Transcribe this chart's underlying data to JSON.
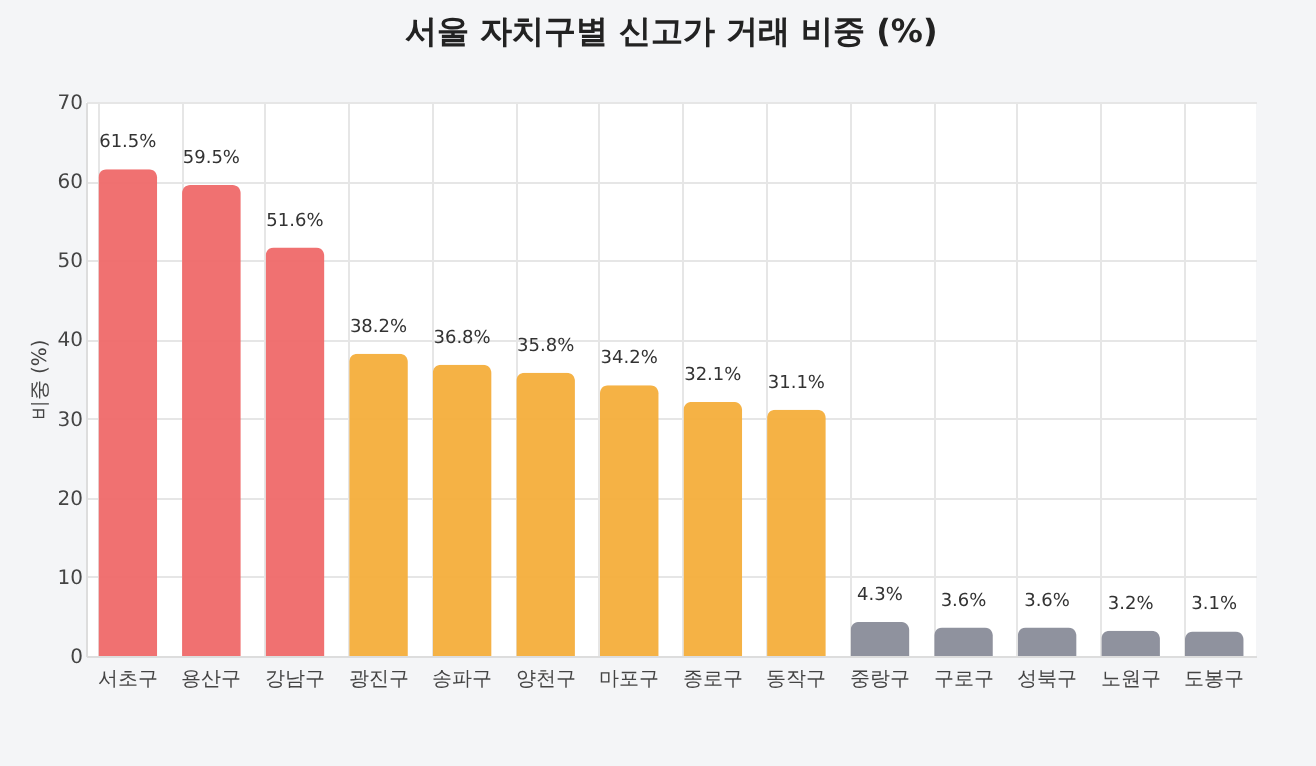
{
  "chart_data": {
    "type": "bar",
    "title": "서울 자치구별 신고가 거래 비중 (%)",
    "ylabel": "비중 (%)",
    "categories": [
      "서초구",
      "용산구",
      "강남구",
      "광진구",
      "송파구",
      "양천구",
      "마포구",
      "종로구",
      "동작구",
      "중랑구",
      "구로구",
      "성북구",
      "노원구",
      "도봉구"
    ],
    "values": [
      61.5,
      59.5,
      51.6,
      38.2,
      36.8,
      35.8,
      34.2,
      32.1,
      31.1,
      4.3,
      3.6,
      3.6,
      3.2,
      3.1
    ],
    "colors": [
      "#f06a6a",
      "#f06a6a",
      "#f06a6a",
      "#f5ae3c",
      "#f5ae3c",
      "#f5ae3c",
      "#f5ae3c",
      "#f5ae3c",
      "#f5ae3c",
      "#8a8d99",
      "#8a8d99",
      "#8a8d99",
      "#8a8d99",
      "#8a8d99"
    ],
    "value_labels": [
      "61.5%",
      "59.5%",
      "51.6%",
      "38.2%",
      "36.8%",
      "35.8%",
      "34.2%",
      "32.1%",
      "31.1%",
      "4.3%",
      "3.6%",
      "3.6%",
      "3.2%",
      "3.1%"
    ],
    "ylim": [
      0,
      70
    ],
    "yticks": [
      0,
      10,
      20,
      30,
      40,
      50,
      60,
      70
    ],
    "grid": true
  }
}
